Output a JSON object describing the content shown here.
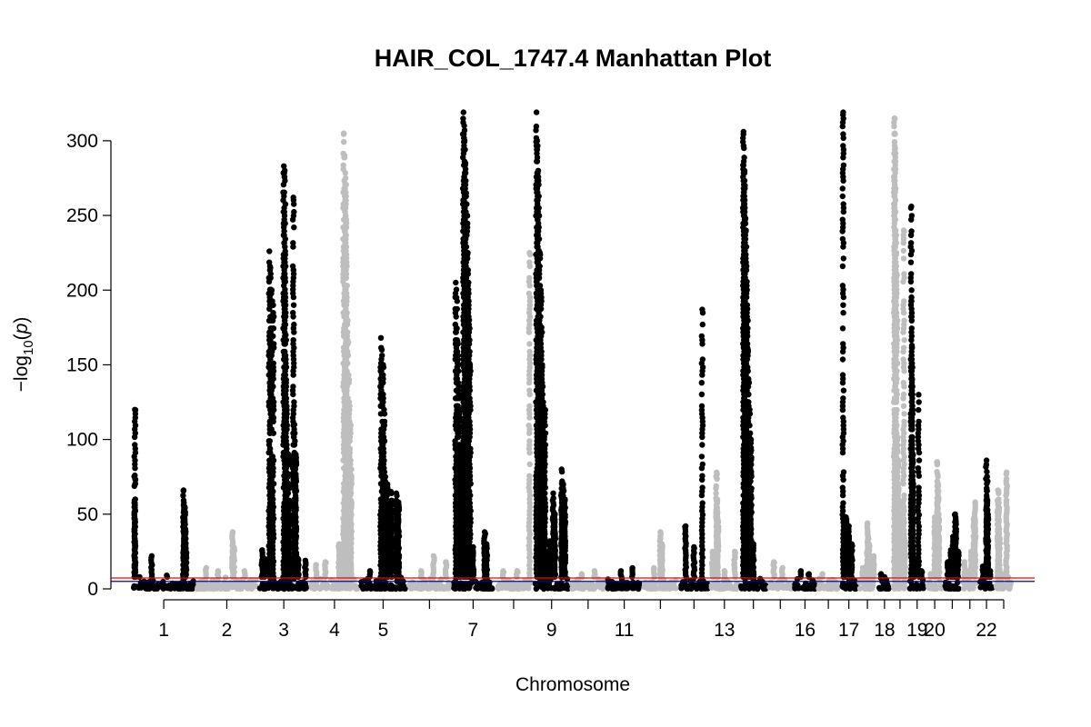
{
  "chart_data": {
    "type": "scatter",
    "title": "HAIR_COL_1747.4 Manhattan Plot",
    "xlabel": "Chromosome",
    "ylabel": "-log10(p)",
    "ylim": [
      0,
      320
    ],
    "y_ticks": [
      0,
      50,
      100,
      150,
      200,
      250,
      300
    ],
    "x_tick_labels": [
      "1",
      "2",
      "3",
      "4",
      "5",
      "",
      "7",
      "",
      "9",
      "",
      "11",
      "",
      "",
      "13",
      "",
      "",
      "16",
      "",
      "17",
      "",
      "18",
      "",
      "19",
      "20",
      "",
      "",
      "22",
      ""
    ],
    "colors": {
      "odd": "#000000",
      "even": "#bebebe",
      "suggestive_line": "#0000cd",
      "genomewide_line": "#ff0000"
    },
    "thresholds": {
      "suggestive": 5,
      "genomewide": 7.3
    },
    "grid": false,
    "baseline_max": 8,
    "chromosomes": [
      {
        "chr": "1",
        "length": 248,
        "peaks": [
          [
            0.02,
            30
          ],
          [
            0.02,
            76
          ],
          [
            0.02,
            120
          ],
          [
            0.1,
            8
          ],
          [
            0.3,
            22
          ],
          [
            0.55,
            9
          ],
          [
            0.83,
            66
          ],
          [
            0.85,
            55
          ],
          [
            0.86,
            40
          ],
          [
            0.87,
            25
          ]
        ]
      },
      {
        "chr": "2",
        "length": 242,
        "peaks": [
          [
            0.15,
            14
          ],
          [
            0.35,
            12
          ],
          [
            0.6,
            38
          ],
          [
            0.62,
            28
          ],
          [
            0.8,
            12
          ]
        ]
      },
      {
        "chr": "3",
        "length": 198,
        "peaks": [
          [
            0.05,
            26
          ],
          [
            0.1,
            20
          ],
          [
            0.2,
            226
          ],
          [
            0.22,
            215
          ],
          [
            0.25,
            200
          ],
          [
            0.28,
            190
          ],
          [
            0.5,
            283
          ],
          [
            0.52,
            280
          ],
          [
            0.53,
            226
          ],
          [
            0.54,
            170
          ],
          [
            0.55,
            140
          ],
          [
            0.56,
            122
          ],
          [
            0.6,
            90
          ],
          [
            0.7,
            262
          ],
          [
            0.72,
            110
          ],
          [
            0.75,
            90
          ],
          [
            0.8,
            20
          ],
          [
            0.95,
            19
          ]
        ]
      },
      {
        "chr": "4",
        "length": 190,
        "peaks": [
          [
            0.1,
            16
          ],
          [
            0.3,
            18
          ],
          [
            0.6,
            30
          ],
          [
            0.7,
            305
          ],
          [
            0.72,
            290
          ],
          [
            0.74,
            275
          ],
          [
            0.75,
            260
          ],
          [
            0.76,
            245
          ],
          [
            0.78,
            180
          ],
          [
            0.8,
            165
          ],
          [
            0.82,
            140
          ],
          [
            0.84,
            110
          ],
          [
            0.86,
            80
          ]
        ]
      },
      {
        "chr": "5",
        "length": 181,
        "peaks": [
          [
            0.2,
            12
          ],
          [
            0.45,
            168
          ],
          [
            0.47,
            160
          ],
          [
            0.5,
            150
          ],
          [
            0.52,
            120
          ],
          [
            0.55,
            75
          ],
          [
            0.6,
            70
          ],
          [
            0.68,
            65
          ],
          [
            0.8,
            64
          ],
          [
            0.85,
            58
          ]
        ]
      },
      {
        "chr": "6",
        "length": 171,
        "peaks": [
          [
            0.3,
            12
          ],
          [
            0.6,
            22
          ],
          [
            0.9,
            18
          ]
        ]
      },
      {
        "chr": "7",
        "length": 159,
        "peaks": [
          [
            0.05,
            205
          ],
          [
            0.07,
            195
          ],
          [
            0.1,
            165
          ],
          [
            0.12,
            150
          ],
          [
            0.15,
            120
          ],
          [
            0.18,
            85
          ],
          [
            0.25,
            319
          ],
          [
            0.27,
            310
          ],
          [
            0.28,
            300
          ],
          [
            0.3,
            285
          ],
          [
            0.32,
            265
          ],
          [
            0.34,
            250
          ],
          [
            0.36,
            225
          ],
          [
            0.38,
            205
          ],
          [
            0.4,
            180
          ],
          [
            0.42,
            150
          ],
          [
            0.5,
            28
          ],
          [
            0.8,
            38
          ],
          [
            0.85,
            30
          ]
        ]
      },
      {
        "chr": "8",
        "length": 145,
        "peaks": [
          [
            0.2,
            12
          ],
          [
            0.6,
            12
          ],
          [
            0.95,
            225
          ]
        ]
      },
      {
        "chr": "9",
        "length": 138,
        "peaks": [
          [
            0.05,
            319
          ],
          [
            0.07,
            300
          ],
          [
            0.1,
            280
          ],
          [
            0.12,
            255
          ],
          [
            0.15,
            225
          ],
          [
            0.18,
            200
          ],
          [
            0.2,
            175
          ],
          [
            0.22,
            150
          ],
          [
            0.25,
            125
          ],
          [
            0.28,
            100
          ],
          [
            0.3,
            120
          ],
          [
            0.4,
            25
          ],
          [
            0.45,
            32
          ],
          [
            0.55,
            64
          ],
          [
            0.6,
            50
          ],
          [
            0.8,
            80
          ],
          [
            0.85,
            70
          ],
          [
            0.9,
            60
          ]
        ]
      },
      {
        "chr": "10",
        "length": 133,
        "peaks": [
          [
            0.3,
            10
          ],
          [
            0.7,
            12
          ]
        ]
      },
      {
        "chr": "11",
        "length": 135,
        "peaks": [
          [
            0.4,
            12
          ],
          [
            0.75,
            14
          ]
        ]
      },
      {
        "chr": "12",
        "length": 133,
        "peaks": [
          [
            0.3,
            14
          ],
          [
            0.5,
            38
          ],
          [
            0.55,
            30
          ]
        ]
      },
      {
        "chr": "13",
        "length": 114,
        "peaks": [
          [
            0.2,
            42
          ],
          [
            0.5,
            28
          ],
          [
            0.8,
            187
          ]
        ]
      },
      {
        "chr": "14",
        "length": 107,
        "peaks": [
          [
            0.05,
            25
          ],
          [
            0.2,
            78
          ],
          [
            0.22,
            60
          ],
          [
            0.25,
            45
          ],
          [
            0.5,
            12
          ],
          [
            0.9,
            25
          ]
        ]
      },
      {
        "chr": "15",
        "length": 102,
        "peaks": [
          [
            0.1,
            306
          ],
          [
            0.12,
            295
          ],
          [
            0.14,
            280
          ],
          [
            0.16,
            270
          ],
          [
            0.18,
            248
          ],
          [
            0.2,
            240
          ],
          [
            0.22,
            216
          ],
          [
            0.24,
            200
          ],
          [
            0.26,
            180
          ],
          [
            0.28,
            160
          ],
          [
            0.3,
            140
          ],
          [
            0.35,
            120
          ],
          [
            0.4,
            100
          ],
          [
            0.5,
            30
          ]
        ]
      },
      {
        "chr": "16",
        "length": 90,
        "peaks": [
          [
            0.2,
            18
          ],
          [
            0.6,
            14
          ]
        ]
      },
      {
        "chr": "17",
        "length": 83,
        "peaks": [
          [
            0.3,
            12
          ],
          [
            0.7,
            10
          ]
        ]
      },
      {
        "chr": "18",
        "length": 80,
        "peaks": [
          [
            0.2,
            10
          ]
        ]
      },
      {
        "chr": "19",
        "length": 59,
        "peaks": [
          [
            0.1,
            319
          ],
          [
            0.3,
            48
          ],
          [
            0.5,
            42
          ],
          [
            0.7,
            30
          ]
        ]
      },
      {
        "chr": "20",
        "length": 64,
        "peaks": [
          [
            0.2,
            14
          ],
          [
            0.5,
            44
          ],
          [
            0.55,
            35
          ],
          [
            0.6,
            30
          ],
          [
            0.8,
            20
          ],
          [
            0.9,
            22
          ]
        ]
      },
      {
        "chr": "21",
        "length": 47,
        "peaks": [
          [
            0.2,
            10
          ],
          [
            0.5,
            8
          ]
        ]
      },
      {
        "chr": "22",
        "length": 51,
        "peaks": [
          [
            0.05,
            315
          ],
          [
            0.07,
            305
          ],
          [
            0.1,
            295
          ],
          [
            0.15,
            240
          ],
          [
            0.2,
            225
          ],
          [
            0.25,
            210
          ],
          [
            0.3,
            100
          ],
          [
            0.35,
            85
          ],
          [
            0.4,
            55
          ],
          [
            0.5,
            45
          ],
          [
            0.8,
            240
          ],
          [
            0.9,
            32
          ]
        ]
      },
      {
        "chr": "23",
        "length": 60,
        "peaks": [
          [
            0.1,
            256
          ],
          [
            0.12,
            200
          ],
          [
            0.14,
            163
          ],
          [
            0.16,
            140
          ],
          [
            0.18,
            120
          ],
          [
            0.2,
            90
          ],
          [
            0.3,
            19
          ],
          [
            0.6,
            130
          ],
          [
            0.8,
            12
          ]
        ]
      },
      {
        "chr": "24",
        "length": 55,
        "peaks": [
          [
            0.2,
            10
          ],
          [
            0.5,
            48
          ],
          [
            0.55,
            30
          ],
          [
            0.7,
            85
          ],
          [
            0.75,
            70
          ],
          [
            0.8,
            50
          ]
        ]
      },
      {
        "chr": "25",
        "length": 60,
        "peaks": [
          [
            0.2,
            18
          ],
          [
            0.4,
            26
          ],
          [
            0.55,
            35
          ],
          [
            0.6,
            30
          ],
          [
            0.7,
            50
          ],
          [
            0.75,
            45
          ],
          [
            0.9,
            25
          ]
        ]
      },
      {
        "chr": "26",
        "length": 55,
        "peaks": [
          [
            0.1,
            18
          ],
          [
            0.3,
            12
          ],
          [
            0.6,
            25
          ],
          [
            0.8,
            47
          ],
          [
            0.9,
            58
          ]
        ]
      },
      {
        "chr": "27",
        "length": 52,
        "peaks": [
          [
            0.2,
            15
          ],
          [
            0.5,
            86
          ],
          [
            0.55,
            75
          ],
          [
            0.6,
            50
          ],
          [
            0.8,
            12
          ]
        ]
      },
      {
        "chr": "28",
        "length": 60,
        "peaks": [
          [
            0.1,
            66
          ],
          [
            0.15,
            60
          ],
          [
            0.2,
            40
          ],
          [
            0.5,
            10
          ],
          [
            0.7,
            78
          ],
          [
            0.8,
            8
          ]
        ]
      }
    ]
  }
}
